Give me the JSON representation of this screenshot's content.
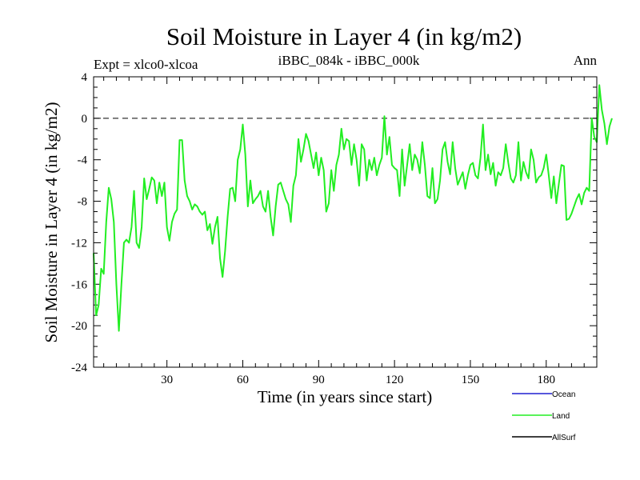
{
  "chart_data": {
    "type": "line",
    "title": "Soil Moisture in Layer 4 (in kg/m2)",
    "subtitle": "iBBC_084k - iBBC_000k",
    "left_label": "Expt = xlco0-xlcoa",
    "right_label": "Ann",
    "xlabel": "Time (in years since start)",
    "ylabel": "Soil Moisture in Layer 4 (in kg/m2)",
    "xlim": [
      1,
      200
    ],
    "ylim": [
      -24,
      4
    ],
    "x_ticks": [
      30,
      60,
      90,
      120,
      150,
      180
    ],
    "y_ticks": [
      4,
      0,
      -4,
      -8,
      -12,
      -16,
      -20,
      -24
    ],
    "zero_line": 0,
    "legend": [
      {
        "name": "Ocean",
        "color": "#2020d0"
      },
      {
        "name": "Land",
        "color": "#22ee22"
      },
      {
        "name": "AllSurf",
        "color": "#000000"
      }
    ],
    "series": [
      {
        "name": "Land",
        "color": "#22ee22",
        "x_start": 1,
        "x_step": 1,
        "values": [
          -13,
          -19,
          -18,
          -14.5,
          -15,
          -10,
          -6.7,
          -7.8,
          -10,
          -16,
          -20.5,
          -16,
          -12,
          -11.7,
          -12,
          -10.5,
          -7,
          -12,
          -12.5,
          -10.5,
          -5.8,
          -7.8,
          -6.8,
          -5.7,
          -6,
          -8.2,
          -6.2,
          -7.5,
          -6.2,
          -10.5,
          -11.8,
          -10,
          -9.2,
          -8.8,
          -2.1,
          -2.1,
          -6,
          -7.5,
          -8,
          -8.8,
          -8.3,
          -8.5,
          -9,
          -9.3,
          -9,
          -10.8,
          -10.2,
          -12.1,
          -10.5,
          -9.5,
          -13.5,
          -15.3,
          -12.8,
          -9.5,
          -6.8,
          -6.7,
          -8,
          -4,
          -3,
          -0.6,
          -3.5,
          -8.5,
          -6,
          -8.2,
          -7.8,
          -7.5,
          -7,
          -8.5,
          -9,
          -7,
          -9.5,
          -11.3,
          -8.5,
          -6.4,
          -6.2,
          -7,
          -7.8,
          -8.3,
          -10,
          -6.5,
          -5.5,
          -2,
          -4.2,
          -3,
          -1.5,
          -2.2,
          -3.5,
          -4.8,
          -3.3,
          -5.5,
          -3.8,
          -5,
          -9,
          -8.2,
          -5,
          -7,
          -4.5,
          -3.5,
          -1,
          -3,
          -2,
          -2.2,
          -4.5,
          -2.5,
          -4,
          -6.5,
          -2.5,
          -3,
          -6,
          -4,
          -5,
          -3.8,
          -5.5,
          -4.5,
          -3.8,
          0.2,
          -3.5,
          -1.8,
          -4.5,
          -4.8,
          -5,
          -7.5,
          -3,
          -6.5,
          -4.5,
          -2.5,
          -5,
          -3.5,
          -4,
          -5.3,
          -2.3,
          -4.5,
          -7.5,
          -7.7,
          -4.8,
          -8.2,
          -7.8,
          -6,
          -3,
          -2.3,
          -4.2,
          -5.4,
          -2.3,
          -4.8,
          -6.4,
          -5.8,
          -5.2,
          -6.8,
          -5.5,
          -4.5,
          -4.3,
          -5.5,
          -5.8,
          -3.8,
          -0.6,
          -5,
          -3.5,
          -5.4,
          -4.3,
          -6.5,
          -5.2,
          -5.5,
          -4.8,
          -2.5,
          -4.3,
          -5.8,
          -6.2,
          -5.5,
          -2.3,
          -6,
          -4.2,
          -5.2,
          -5.8,
          -3,
          -4,
          -6.2,
          -5.7,
          -5.5,
          -4.8,
          -3.5,
          -5.5,
          -7.7,
          -5.6,
          -8.2,
          -6.3,
          -4.5,
          -4.6,
          -9.8,
          -9.7,
          -9.2,
          -8.5,
          -7.8,
          -7.3,
          -8.3,
          -7.2,
          -6.7,
          -7,
          0,
          -1.8,
          -2.3,
          3.2,
          0.8,
          -0.5,
          -2.5,
          -0.8,
          0
        ]
      }
    ]
  }
}
